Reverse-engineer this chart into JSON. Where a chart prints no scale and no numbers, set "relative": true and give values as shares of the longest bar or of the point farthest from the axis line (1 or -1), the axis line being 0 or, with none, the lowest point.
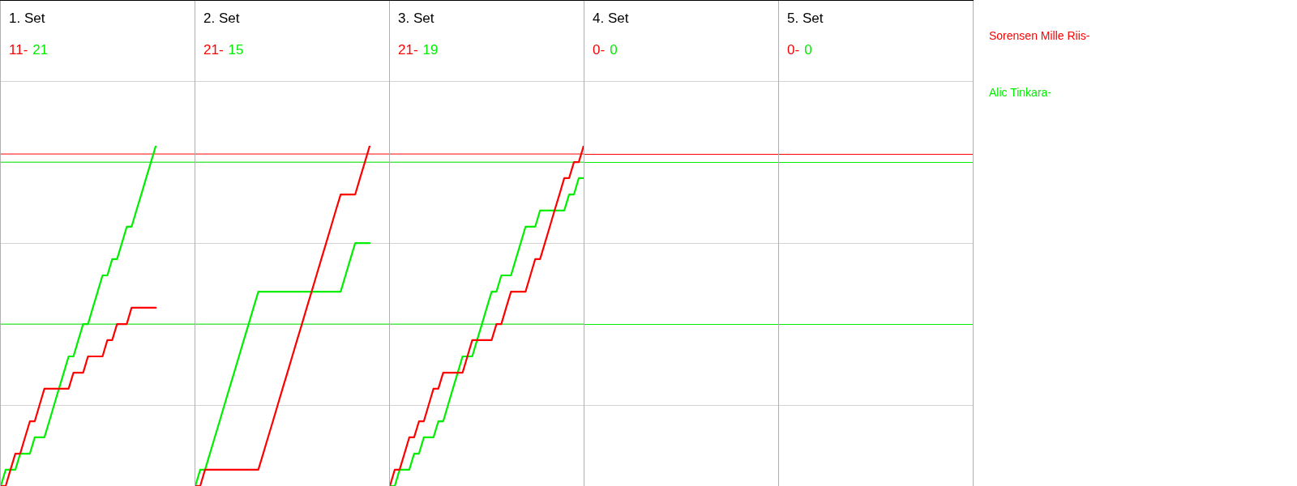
{
  "chart_data": [
    {
      "type": "line",
      "title": "1. Set",
      "annotations": [
        "11-",
        "21"
      ],
      "relative": true,
      "categories": [
        null,
        null,
        null,
        null,
        null,
        null,
        null,
        null,
        null,
        null,
        null,
        null,
        null,
        null,
        null,
        null,
        null,
        null,
        null,
        null,
        null,
        null,
        null,
        null,
        null,
        null,
        null,
        null,
        null,
        null,
        null,
        null,
        null,
        null,
        null,
        null,
        null,
        null,
        null,
        null,
        null
      ],
      "series": [
        {
          "color": "#ff0000",
          "values": [
            0,
            0,
            0.048,
            0.095,
            0.095,
            0.143,
            0.19,
            0.19,
            0.238,
            0.286,
            0.286,
            0.286,
            0.286,
            0.286,
            0.286,
            0.333,
            0.333,
            0.333,
            0.381,
            0.381,
            0.381,
            0.381,
            0.429,
            0.429,
            0.476,
            0.476,
            0.476,
            0.524,
            0.524,
            0.524,
            0.524,
            0.524,
            0.524,
            null,
            null,
            null,
            null,
            null,
            null,
            null,
            null
          ]
        },
        {
          "color": "#00ee00",
          "values": [
            0,
            0.048,
            0.048,
            0.048,
            0.095,
            0.095,
            0.095,
            0.143,
            0.143,
            0.143,
            0.19,
            0.238,
            0.286,
            0.333,
            0.381,
            0.381,
            0.429,
            0.476,
            0.476,
            0.524,
            0.571,
            0.619,
            0.619,
            0.667,
            0.667,
            0.714,
            0.762,
            0.762,
            0.81,
            0.857,
            0.905,
            0.952,
            1,
            null,
            null,
            null,
            null,
            null,
            null,
            null,
            null
          ]
        }
      ],
      "grid": "y",
      "tick_labels": false,
      "marker": "none",
      "ref_lines": [
        {
          "axis": "y",
          "value": 0.976,
          "color": "#ff0000"
        },
        {
          "axis": "y",
          "value": 0.952,
          "color": "#00ee00"
        },
        {
          "axis": "y",
          "value": 0.476,
          "color": "#00ee00"
        }
      ]
    },
    {
      "type": "line",
      "title": "2. Set",
      "annotations": [
        "21-",
        "15"
      ],
      "relative": true,
      "categories": [
        null,
        null,
        null,
        null,
        null,
        null,
        null,
        null,
        null,
        null,
        null,
        null,
        null,
        null,
        null,
        null,
        null,
        null,
        null,
        null,
        null,
        null,
        null,
        null,
        null,
        null,
        null,
        null,
        null,
        null,
        null,
        null,
        null,
        null,
        null,
        null,
        null,
        null,
        null,
        null,
        null
      ],
      "series": [
        {
          "color": "#ff0000",
          "values": [
            0,
            0,
            0.048,
            0.048,
            0.048,
            0.048,
            0.048,
            0.048,
            0.048,
            0.048,
            0.048,
            0.048,
            0.048,
            0.048,
            0.095,
            0.143,
            0.19,
            0.238,
            0.286,
            0.333,
            0.381,
            0.429,
            0.476,
            0.524,
            0.571,
            0.619,
            0.667,
            0.714,
            0.762,
            0.81,
            0.857,
            0.857,
            0.857,
            0.857,
            0.905,
            0.952,
            1,
            null,
            null,
            null,
            null
          ]
        },
        {
          "color": "#00ee00",
          "values": [
            0,
            0.048,
            0.048,
            0.095,
            0.143,
            0.19,
            0.238,
            0.286,
            0.333,
            0.381,
            0.429,
            0.476,
            0.524,
            0.571,
            0.571,
            0.571,
            0.571,
            0.571,
            0.571,
            0.571,
            0.571,
            0.571,
            0.571,
            0.571,
            0.571,
            0.571,
            0.571,
            0.571,
            0.571,
            0.571,
            0.571,
            0.619,
            0.667,
            0.714,
            0.714,
            0.714,
            0.714,
            null,
            null,
            null,
            null
          ]
        }
      ],
      "grid": "y",
      "tick_labels": false,
      "marker": "none",
      "ref_lines": [
        {
          "axis": "y",
          "value": 0.976,
          "color": "#ff0000"
        },
        {
          "axis": "y",
          "value": 0.952,
          "color": "#00ee00"
        },
        {
          "axis": "y",
          "value": 0.476,
          "color": "#00ee00"
        }
      ]
    },
    {
      "type": "line",
      "title": "3. Set",
      "annotations": [
        "21-",
        "19"
      ],
      "relative": true,
      "categories": [
        null,
        null,
        null,
        null,
        null,
        null,
        null,
        null,
        null,
        null,
        null,
        null,
        null,
        null,
        null,
        null,
        null,
        null,
        null,
        null,
        null,
        null,
        null,
        null,
        null,
        null,
        null,
        null,
        null,
        null,
        null,
        null,
        null,
        null,
        null,
        null,
        null,
        null,
        null,
        null,
        null
      ],
      "series": [
        {
          "color": "#ff0000",
          "values": [
            0,
            0.048,
            0.048,
            0.095,
            0.143,
            0.143,
            0.19,
            0.19,
            0.238,
            0.286,
            0.286,
            0.333,
            0.333,
            0.333,
            0.333,
            0.333,
            0.381,
            0.429,
            0.429,
            0.429,
            0.429,
            0.429,
            0.476,
            0.476,
            0.524,
            0.571,
            0.571,
            0.571,
            0.571,
            0.619,
            0.667,
            0.667,
            0.714,
            0.762,
            0.81,
            0.857,
            0.905,
            0.905,
            0.952,
            0.952,
            1
          ]
        },
        {
          "color": "#00ee00",
          "values": [
            0,
            0,
            0.048,
            0.048,
            0.048,
            0.095,
            0.095,
            0.143,
            0.143,
            0.143,
            0.19,
            0.19,
            0.238,
            0.286,
            0.333,
            0.381,
            0.381,
            0.381,
            0.429,
            0.476,
            0.524,
            0.571,
            0.571,
            0.619,
            0.619,
            0.619,
            0.667,
            0.714,
            0.762,
            0.762,
            0.762,
            0.81,
            0.81,
            0.81,
            0.81,
            0.81,
            0.81,
            0.857,
            0.857,
            0.905,
            0.905
          ]
        }
      ],
      "grid": "y",
      "tick_labels": false,
      "marker": "none",
      "ref_lines": [
        {
          "axis": "y",
          "value": 0.976,
          "color": "#ff0000"
        },
        {
          "axis": "y",
          "value": 0.952,
          "color": "#00ee00"
        },
        {
          "axis": "y",
          "value": 0.476,
          "color": "#00ee00"
        }
      ]
    },
    {
      "type": "other",
      "title": "4. Set",
      "annotations": [
        "0-",
        "0"
      ],
      "series": [
        {
          "color": "#ff0000"
        },
        {
          "color": "#00ee00"
        }
      ]
    },
    {
      "type": "other",
      "title": "5. Set",
      "annotations": [
        "0-",
        "0"
      ],
      "series": [
        {
          "name": "Sorensen Mille Riis-",
          "color": "#ff0000"
        },
        {
          "name": "Alic Tinkara-",
          "color": "#00ee00"
        }
      ]
    }
  ]
}
